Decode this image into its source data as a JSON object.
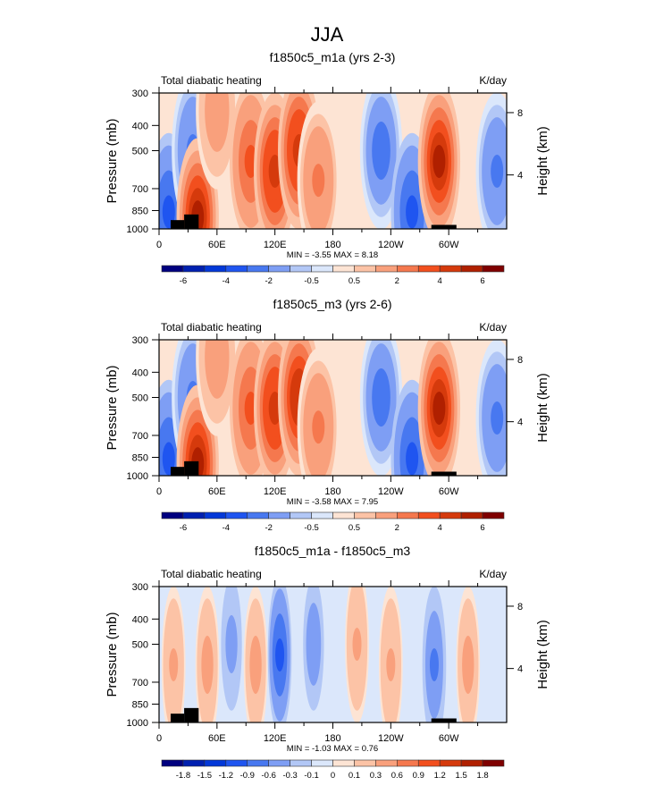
{
  "figure_title": "JJA",
  "palette": [
    "#00007f",
    "#0020b0",
    "#0338d8",
    "#1f55f0",
    "#4878f0",
    "#7e9ef4",
    "#b2c7f6",
    "#dbe7fb",
    "#fde4d4",
    "#fcc3a6",
    "#f9a07c",
    "#f5784e",
    "#f24f1e",
    "#d53a0c",
    "#b02000",
    "#7f0000"
  ],
  "chart_data": [
    {
      "type": "heatmap",
      "title": "f1850c5_m1a (yrs 2-3)",
      "left_string": "Total diabatic heating",
      "right_string": "K/day",
      "ylabel": "Pressure (mb)",
      "ylabel_right": "Height (km)",
      "x_ticks": [
        "0",
        "60E",
        "120E",
        "180",
        "120W",
        "60W"
      ],
      "y_ticks": [
        "300",
        "400",
        "500",
        "700",
        "850",
        "1000"
      ],
      "y_ticks_right": [
        "8",
        "4"
      ],
      "xlim": [
        0,
        360
      ],
      "ylim_mb": [
        1000,
        300
      ],
      "stats": "MIN = -3.55  MAX =  8.18",
      "levels": [
        -7,
        -6,
        -5,
        -4,
        -3,
        -2,
        -1,
        -0.5,
        0,
        0.5,
        1,
        2,
        3,
        4,
        5,
        6,
        7
      ],
      "colorbar_labels": [
        "-6",
        "-4",
        "-2",
        "-0.5",
        "0.5",
        "2",
        "4",
        "6"
      ],
      "features": [
        {
          "lon": 10,
          "p": 860,
          "value": -3.0
        },
        {
          "lon": 35,
          "p": 500,
          "value": -2.0
        },
        {
          "lon": 40,
          "p": 900,
          "value": 5.5
        },
        {
          "lon": 60,
          "p": 350,
          "value": 1.5
        },
        {
          "lon": 95,
          "p": 550,
          "value": 3.0
        },
        {
          "lon": 120,
          "p": 600,
          "value": 4.5
        },
        {
          "lon": 145,
          "p": 500,
          "value": 4.5
        },
        {
          "lon": 165,
          "p": 650,
          "value": 2.0
        },
        {
          "lon": 230,
          "p": 500,
          "value": -2.5
        },
        {
          "lon": 262,
          "p": 860,
          "value": -3.0
        },
        {
          "lon": 290,
          "p": 550,
          "value": 5.5
        },
        {
          "lon": 350,
          "p": 600,
          "value": -2.0
        }
      ]
    },
    {
      "type": "heatmap",
      "title": "f1850c5_m3 (yrs 2-6)",
      "left_string": "Total diabatic heating",
      "right_string": "K/day",
      "ylabel": "Pressure (mb)",
      "ylabel_right": "Height (km)",
      "x_ticks": [
        "0",
        "60E",
        "120E",
        "180",
        "120W",
        "60W"
      ],
      "y_ticks": [
        "300",
        "400",
        "500",
        "700",
        "850",
        "1000"
      ],
      "y_ticks_right": [
        "8",
        "4"
      ],
      "xlim": [
        0,
        360
      ],
      "ylim_mb": [
        1000,
        300
      ],
      "stats": "MIN = -3.58  MAX =  7.95",
      "levels": [
        -7,
        -6,
        -5,
        -4,
        -3,
        -2,
        -1,
        -0.5,
        0,
        0.5,
        1,
        2,
        3,
        4,
        5,
        6,
        7
      ],
      "colorbar_labels": [
        "-6",
        "-4",
        "-2",
        "-0.5",
        "0.5",
        "2",
        "4",
        "6"
      ],
      "features": [
        {
          "lon": 10,
          "p": 860,
          "value": -3.0
        },
        {
          "lon": 35,
          "p": 500,
          "value": -2.0
        },
        {
          "lon": 40,
          "p": 900,
          "value": 5.5
        },
        {
          "lon": 60,
          "p": 350,
          "value": 1.5
        },
        {
          "lon": 95,
          "p": 550,
          "value": 3.0
        },
        {
          "lon": 120,
          "p": 550,
          "value": 4.5
        },
        {
          "lon": 145,
          "p": 500,
          "value": 4.8
        },
        {
          "lon": 165,
          "p": 650,
          "value": 2.0
        },
        {
          "lon": 230,
          "p": 500,
          "value": -2.5
        },
        {
          "lon": 262,
          "p": 860,
          "value": -3.2
        },
        {
          "lon": 290,
          "p": 550,
          "value": 5.5
        },
        {
          "lon": 350,
          "p": 600,
          "value": -2.0
        }
      ]
    },
    {
      "type": "heatmap",
      "title": "f1850c5_m1a - f1850c5_m3",
      "left_string": "Total diabatic heating",
      "right_string": "K/day",
      "ylabel": "Pressure (mb)",
      "ylabel_right": "Height (km)",
      "x_ticks": [
        "0",
        "60E",
        "120E",
        "180",
        "120W",
        "60W"
      ],
      "y_ticks": [
        "300",
        "400",
        "500",
        "700",
        "850",
        "1000"
      ],
      "y_ticks_right": [
        "8",
        "4"
      ],
      "xlim": [
        0,
        360
      ],
      "ylim_mb": [
        1000,
        300
      ],
      "stats": "MIN = -1.03  MAX =  0.76",
      "levels": [
        -2.1,
        -1.8,
        -1.5,
        -1.2,
        -0.9,
        -0.6,
        -0.3,
        -0.1,
        0,
        0.1,
        0.3,
        0.6,
        0.9,
        1.2,
        1.5,
        1.8,
        2.1
      ],
      "colorbar_labels": [
        "-1.8",
        "-1.5",
        "-1.2",
        "-0.9",
        "-0.6",
        "-0.3",
        "-0.1",
        "0",
        "0.1",
        "0.3",
        "0.6",
        "0.9",
        "1.2",
        "1.5",
        "1.8"
      ],
      "features": [
        {
          "lon": 15,
          "p": 600,
          "value": 0.3
        },
        {
          "lon": 50,
          "p": 600,
          "value": 0.4
        },
        {
          "lon": 75,
          "p": 500,
          "value": -0.4
        },
        {
          "lon": 100,
          "p": 600,
          "value": 0.4
        },
        {
          "lon": 125,
          "p": 550,
          "value": -0.9
        },
        {
          "lon": 160,
          "p": 500,
          "value": -0.5
        },
        {
          "lon": 205,
          "p": 500,
          "value": 0.3
        },
        {
          "lon": 240,
          "p": 600,
          "value": 0.3
        },
        {
          "lon": 285,
          "p": 600,
          "value": -0.6
        },
        {
          "lon": 320,
          "p": 600,
          "value": 0.4
        }
      ]
    }
  ]
}
